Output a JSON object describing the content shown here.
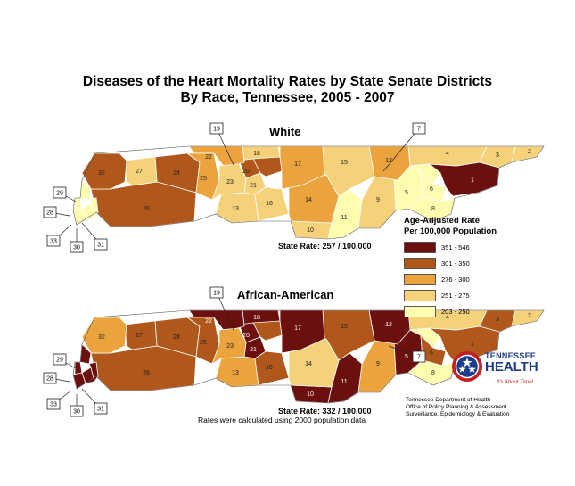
{
  "title_line1": "Diseases of the Heart Mortality Rates by State Senate Districts",
  "title_line2": "By Race, Tennessee, 2005 - 2007",
  "colors": {
    "c1": "#6b0f0f",
    "c2": "#b0581c",
    "c3": "#eba43d",
    "c4": "#f5d17a",
    "c5": "#fefcae",
    "border": "#ffffff",
    "outline": "#555555"
  },
  "maps": [
    {
      "title": "White",
      "state_rate": "State Rate: 257 / 100,000",
      "districts": [
        {
          "num": "1",
          "cls": "c1"
        },
        {
          "num": "2",
          "cls": "c4"
        },
        {
          "num": "3",
          "cls": "c4"
        },
        {
          "num": "4",
          "cls": "c4"
        },
        {
          "num": "5",
          "cls": "c5"
        },
        {
          "num": "6",
          "cls": "c5"
        },
        {
          "num": "7",
          "cls": "c5"
        },
        {
          "num": "8",
          "cls": "c5"
        },
        {
          "num": "9",
          "cls": "c4"
        },
        {
          "num": "10",
          "cls": "c4"
        },
        {
          "num": "11",
          "cls": "c5"
        },
        {
          "num": "12",
          "cls": "c3"
        },
        {
          "num": "13",
          "cls": "c4"
        },
        {
          "num": "14",
          "cls": "c3"
        },
        {
          "num": "15",
          "cls": "c4"
        },
        {
          "num": "16",
          "cls": "c4"
        },
        {
          "num": "17",
          "cls": "c3"
        },
        {
          "num": "18",
          "cls": "c4"
        },
        {
          "num": "19",
          "cls": "c2"
        },
        {
          "num": "20",
          "cls": "c2"
        },
        {
          "num": "21",
          "cls": "c4"
        },
        {
          "num": "22",
          "cls": "c3"
        },
        {
          "num": "23",
          "cls": "c4"
        },
        {
          "num": "24",
          "cls": "c2"
        },
        {
          "num": "25",
          "cls": "c3"
        },
        {
          "num": "26",
          "cls": "c2"
        },
        {
          "num": "27",
          "cls": "c4"
        },
        {
          "num": "28",
          "cls": "c5"
        },
        {
          "num": "29",
          "cls": "c5"
        },
        {
          "num": "30",
          "cls": "c5"
        },
        {
          "num": "31",
          "cls": "c5"
        },
        {
          "num": "32",
          "cls": "c2"
        },
        {
          "num": "33",
          "cls": "c5"
        }
      ]
    },
    {
      "title": "African-American",
      "state_rate": "State Rate: 332 / 100,000",
      "districts": [
        {
          "num": "1",
          "cls": "c2"
        },
        {
          "num": "2",
          "cls": "c4"
        },
        {
          "num": "3",
          "cls": "c2"
        },
        {
          "num": "4",
          "cls": "c4"
        },
        {
          "num": "5",
          "cls": "c1"
        },
        {
          "num": "6",
          "cls": "c2"
        },
        {
          "num": "7",
          "cls": "c5"
        },
        {
          "num": "8",
          "cls": "c5"
        },
        {
          "num": "9",
          "cls": "c3"
        },
        {
          "num": "10",
          "cls": "c1"
        },
        {
          "num": "11",
          "cls": "c1"
        },
        {
          "num": "12",
          "cls": "c1"
        },
        {
          "num": "13",
          "cls": "c3"
        },
        {
          "num": "14",
          "cls": "c4"
        },
        {
          "num": "15",
          "cls": "c2"
        },
        {
          "num": "16",
          "cls": "c2"
        },
        {
          "num": "17",
          "cls": "c1"
        },
        {
          "num": "18",
          "cls": "c1"
        },
        {
          "num": "19",
          "cls": "c2"
        },
        {
          "num": "20",
          "cls": "c1"
        },
        {
          "num": "21",
          "cls": "c1"
        },
        {
          "num": "22",
          "cls": "c1"
        },
        {
          "num": "23",
          "cls": "c3"
        },
        {
          "num": "24",
          "cls": "c2"
        },
        {
          "num": "25",
          "cls": "c2"
        },
        {
          "num": "26",
          "cls": "c2"
        },
        {
          "num": "27",
          "cls": "c2"
        },
        {
          "num": "28",
          "cls": "c1"
        },
        {
          "num": "29",
          "cls": "c1"
        },
        {
          "num": "30",
          "cls": "c1"
        },
        {
          "num": "31",
          "cls": "c1"
        },
        {
          "num": "32",
          "cls": "c3"
        },
        {
          "num": "33",
          "cls": "c1"
        }
      ]
    }
  ],
  "note": "Rates were calculated using 2000 population data",
  "legend": {
    "title_line1": "Age-Adjusted Rate",
    "title_line2": "Per 100,000 Population",
    "items": [
      {
        "label": "351 - 546",
        "cls": "c1"
      },
      {
        "label": "301 - 350",
        "cls": "c2"
      },
      {
        "label": "276 - 300",
        "cls": "c3"
      },
      {
        "label": "251 - 275",
        "cls": "c4"
      },
      {
        "label": "203 - 250",
        "cls": "c5"
      }
    ]
  },
  "logo": {
    "word1": "TENNESSEE",
    "word2": "HEALTH",
    "tagline": "It's About Time!"
  },
  "credit": [
    "Tennessee Department of Health",
    "Office of Policy Planning & Assessment",
    "Surveillance, Epidemiology & Evaluation"
  ]
}
